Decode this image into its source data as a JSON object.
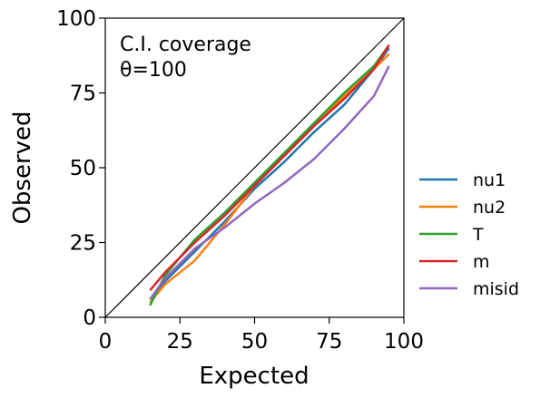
{
  "chart_data": {
    "type": "line",
    "xlabel": "Expected",
    "ylabel": "Observed",
    "xlim": [
      0,
      100
    ],
    "ylim": [
      0,
      100
    ],
    "xticks": [
      0,
      25,
      50,
      75,
      100
    ],
    "yticks": [
      0,
      25,
      50,
      75,
      100
    ],
    "grid": false,
    "legend_position": "right, outside plot",
    "annotation_lines": [
      "C.I. coverage",
      "θ=100"
    ],
    "reference_line": {
      "x": [
        0,
        100
      ],
      "y": [
        0,
        100
      ],
      "color": "#000000"
    },
    "series": [
      {
        "name": "nu1",
        "color": "#1f77b4",
        "x": [
          15,
          20,
          30,
          40,
          50,
          60,
          70,
          80,
          90,
          95
        ],
        "y": [
          6,
          12,
          22,
          32,
          43,
          52,
          62,
          71,
          83,
          90
        ]
      },
      {
        "name": "nu2",
        "color": "#ff7f0e",
        "x": [
          15,
          20,
          30,
          40,
          50,
          60,
          70,
          80,
          90,
          95
        ],
        "y": [
          5,
          11,
          19,
          31,
          44,
          54,
          64,
          74,
          83,
          88
        ]
      },
      {
        "name": "T",
        "color": "#2ca02c",
        "x": [
          15,
          20,
          30,
          40,
          50,
          60,
          70,
          80,
          90,
          95
        ],
        "y": [
          4,
          14,
          26,
          35,
          45,
          55,
          65,
          75,
          84,
          91
        ]
      },
      {
        "name": "m",
        "color": "#d62728",
        "x": [
          15,
          20,
          30,
          40,
          50,
          60,
          70,
          80,
          90,
          95
        ],
        "y": [
          9,
          15,
          25,
          34,
          44,
          54,
          64,
          73,
          83,
          91
        ]
      },
      {
        "name": "misid",
        "color": "#9467bd",
        "x": [
          15,
          20,
          30,
          40,
          50,
          60,
          70,
          80,
          90,
          95
        ],
        "y": [
          6,
          13,
          23,
          30,
          38,
          45,
          53,
          63,
          74,
          84
        ]
      }
    ]
  }
}
